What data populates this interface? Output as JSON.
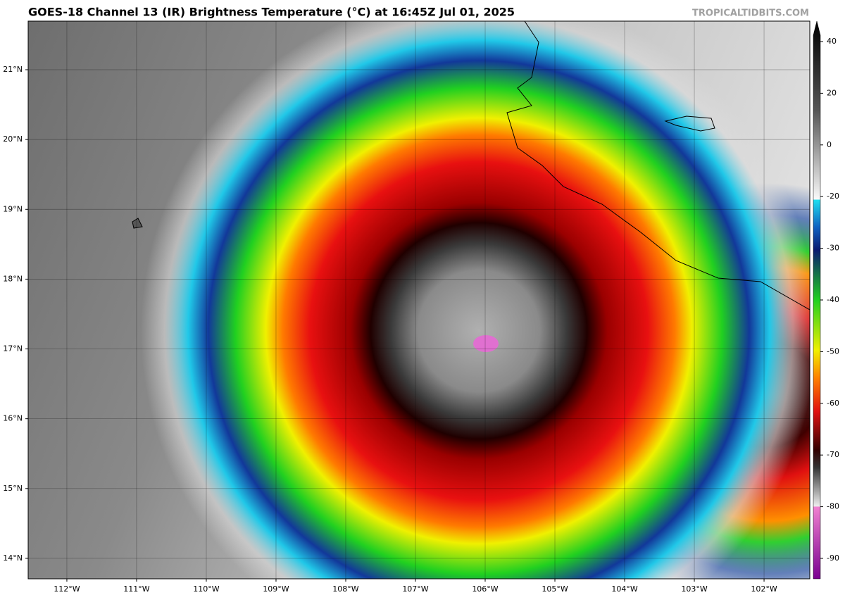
{
  "header": {
    "title": "GOES-18 Channel 13 (IR) Brightness Temperature (°C) at 16:45Z Jul 01, 2025",
    "source": "TROPICALTIDBITS.COM"
  },
  "map": {
    "lon_range": [
      -112.555,
      -101.344
    ],
    "lat_range": [
      13.707,
      21.696
    ],
    "lon_ticks": [
      {
        "value": -112,
        "label": "112°W"
      },
      {
        "value": -111,
        "label": "111°W"
      },
      {
        "value": -110,
        "label": "110°W"
      },
      {
        "value": -109,
        "label": "109°W"
      },
      {
        "value": -108,
        "label": "108°W"
      },
      {
        "value": -107,
        "label": "107°W"
      },
      {
        "value": -106,
        "label": "106°W"
      },
      {
        "value": -105,
        "label": "105°W"
      },
      {
        "value": -104,
        "label": "104°W"
      },
      {
        "value": -103,
        "label": "103°W"
      },
      {
        "value": -102,
        "label": "102°W"
      }
    ],
    "lat_ticks": [
      {
        "value": 21,
        "label": "21°N"
      },
      {
        "value": 20,
        "label": "20°N"
      },
      {
        "value": 19,
        "label": "19°N"
      },
      {
        "value": 18,
        "label": "18°N"
      },
      {
        "value": 17,
        "label": "17°N"
      },
      {
        "value": 16,
        "label": "16°N"
      },
      {
        "value": 15,
        "label": "15°N"
      },
      {
        "value": 14,
        "label": "14°N"
      }
    ]
  },
  "colorbar": {
    "ticks": [
      40,
      20,
      0,
      -20,
      -30,
      -40,
      -50,
      -60,
      -70,
      -80,
      -90
    ]
  }
}
